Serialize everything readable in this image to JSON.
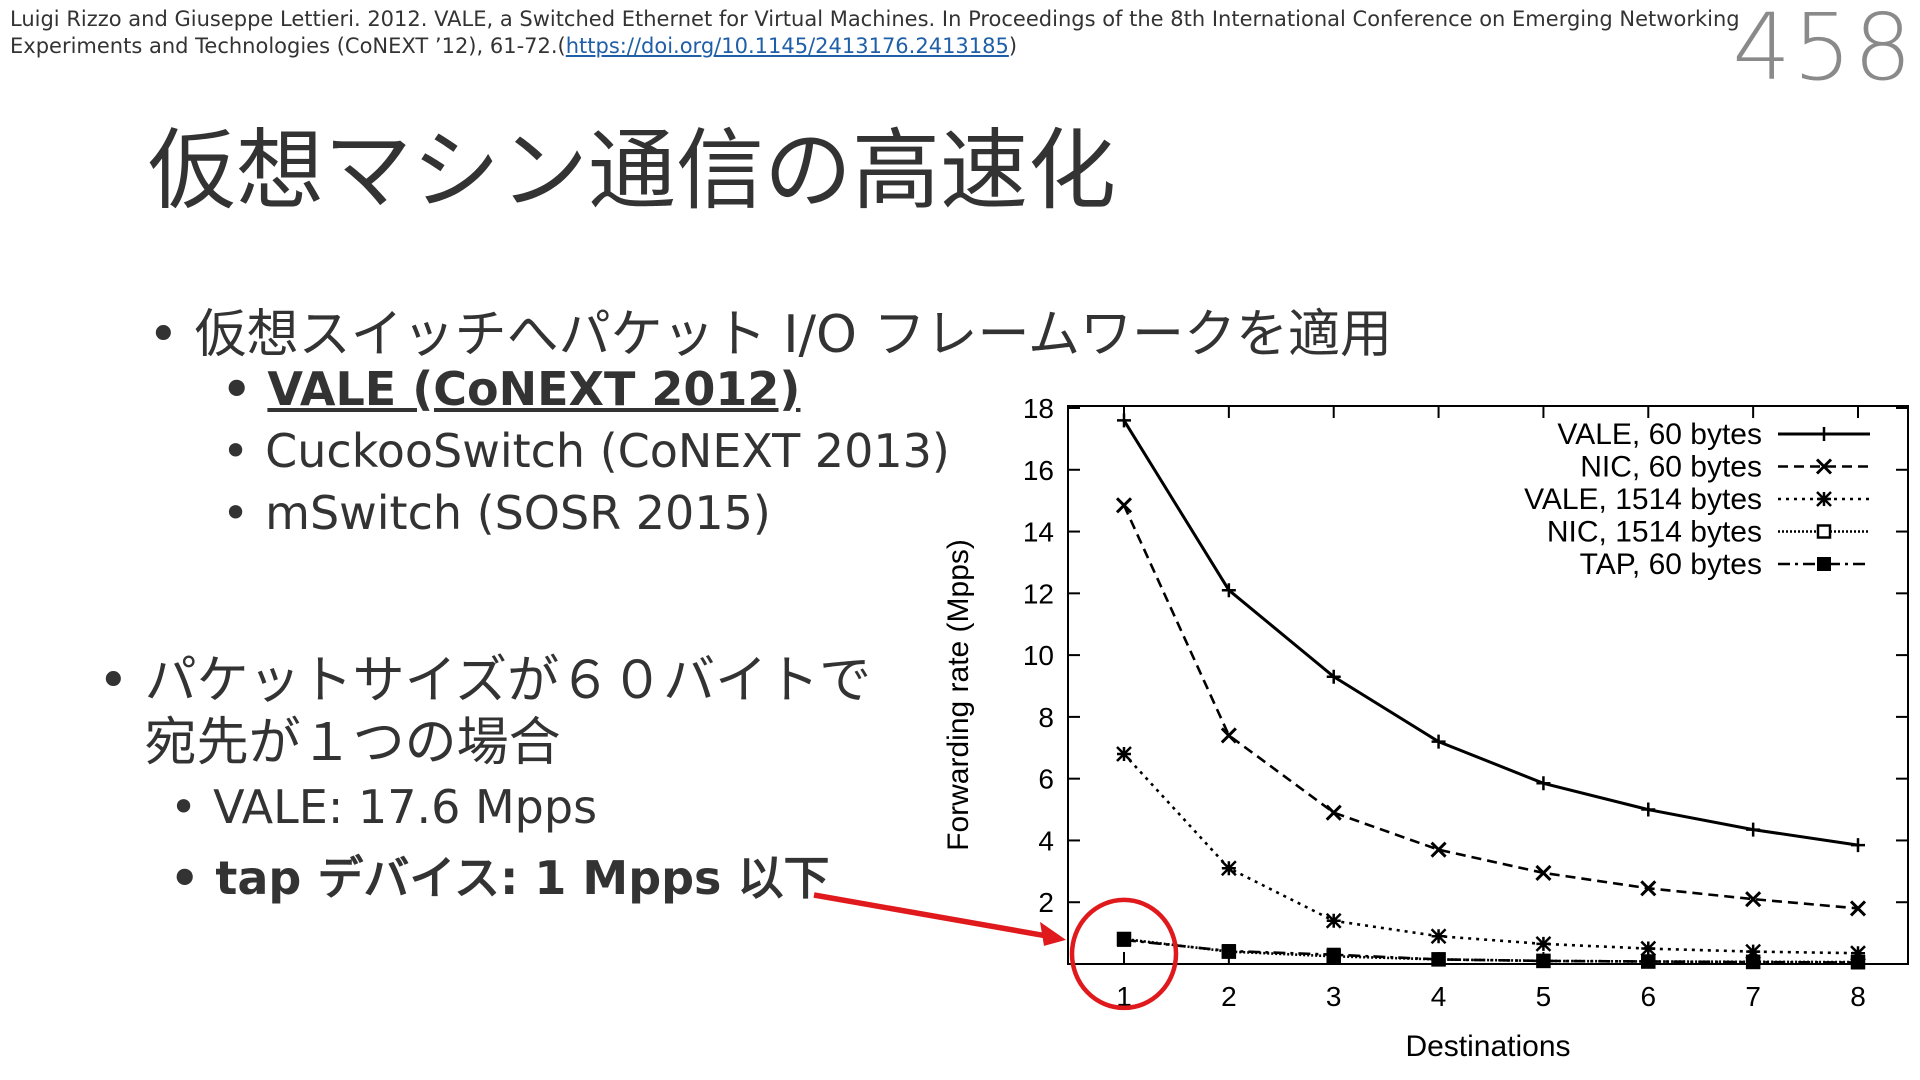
{
  "citation": {
    "text": "Luigi Rizzo and Giuseppe Lettieri. 2012. VALE, a Switched Ethernet for Virtual Machines. In Proceedings of the 8th International Conference on Emerging Networking Experiments and Technologies (CoNEXT ’12), 61-72.(",
    "link": "https://doi.org/10.1145/2413176.2413185",
    "suffix": ")"
  },
  "page_number": "458",
  "title": "仮想マシン通信の高速化",
  "bullets": {
    "main1": "仮想スイッチへパケット I/O フレームワークを適用",
    "sub1": [
      "VALE (CoNEXT 2012)",
      "CuckooSwitch (CoNEXT 2013)",
      "mSwitch (SOSR 2015)"
    ],
    "main2_line1": "パケットサイズが６０バイトで",
    "main2_line2": "宛先が１つの場合",
    "sub2": [
      "VALE: 17.6 Mpps",
      "tap デバイス: 1 Mpps 以下"
    ],
    "bullet_char": "•"
  },
  "colors": {
    "highlight": "#e0191c",
    "link": "#1f5fa8",
    "text": "#333333"
  },
  "chart_data": {
    "type": "line",
    "xlabel": "Destinations",
    "ylabel": "Forwarding rate (Mpps)",
    "x": [
      1,
      2,
      3,
      4,
      5,
      6,
      7,
      8
    ],
    "xlim": [
      1,
      8
    ],
    "ylim": [
      0,
      18
    ],
    "yticks": [
      2,
      4,
      6,
      8,
      10,
      12,
      14,
      16,
      18
    ],
    "grid": false,
    "legend": "top-right",
    "series": [
      {
        "name": "VALE, 60 bytes",
        "values": [
          17.6,
          12.1,
          9.3,
          7.2,
          5.85,
          5.0,
          4.35,
          3.85
        ],
        "dash": "solid",
        "marker": "plus"
      },
      {
        "name": "NIC, 60 bytes",
        "values": [
          14.85,
          7.4,
          4.9,
          3.7,
          2.95,
          2.45,
          2.1,
          1.8
        ],
        "dash": "dashed",
        "marker": "x"
      },
      {
        "name": "VALE, 1514 bytes",
        "values": [
          6.8,
          3.1,
          1.4,
          0.9,
          0.65,
          0.5,
          0.4,
          0.35
        ],
        "dash": "dotted",
        "marker": "star"
      },
      {
        "name": "NIC, 1514 bytes",
        "values": [
          0.81,
          0.4,
          0.25,
          0.15,
          0.1,
          0.08,
          0.07,
          0.06
        ],
        "dash": "fine-dotted",
        "marker": "square-open"
      },
      {
        "name": "TAP, 60 bytes",
        "values": [
          0.78,
          0.42,
          0.3,
          0.15,
          0.1,
          0.08,
          0.06,
          0.05
        ],
        "dash": "dashdot",
        "marker": "square"
      }
    ],
    "annotation": {
      "type": "circle-arrow",
      "target_series": "TAP, 60 bytes",
      "target_x": 1
    }
  }
}
